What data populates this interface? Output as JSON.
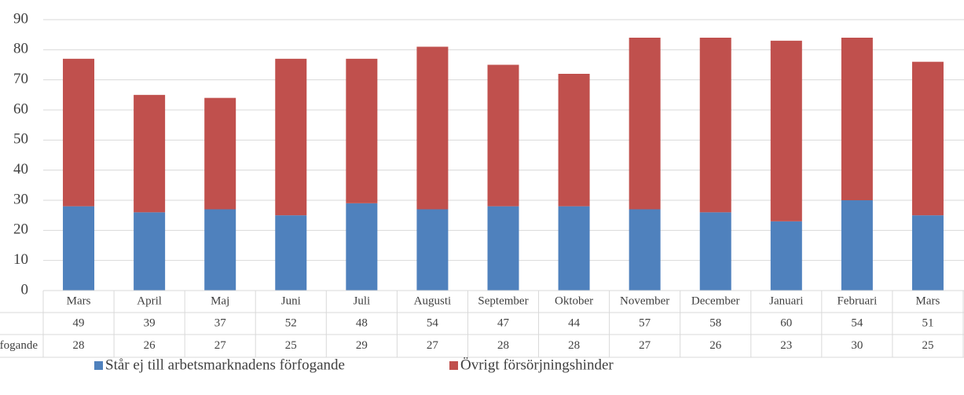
{
  "chart_data": {
    "type": "stacked_bar",
    "categories": [
      "Mars",
      "April",
      "Maj",
      "Juni",
      "Juli",
      "Augusti",
      "September",
      "Oktober",
      "November",
      "December",
      "Januari",
      "Februari",
      "Mars"
    ],
    "series": [
      {
        "name": "Står ej till arbetsmarknadens förfogande",
        "color": "#4f81bd",
        "values": [
          28,
          26,
          27,
          25,
          29,
          27,
          28,
          28,
          27,
          26,
          23,
          30,
          25
        ]
      },
      {
        "name": "Övrigt försörjningshinder",
        "color": "#c0504d",
        "values": [
          49,
          39,
          37,
          52,
          48,
          54,
          47,
          44,
          57,
          58,
          60,
          54,
          51
        ]
      }
    ],
    "ylim": [
      0,
      90
    ],
    "yticks": [
      0,
      10,
      20,
      30,
      40,
      50,
      60,
      70,
      80,
      90
    ],
    "grid": true,
    "legend": "bottom"
  }
}
